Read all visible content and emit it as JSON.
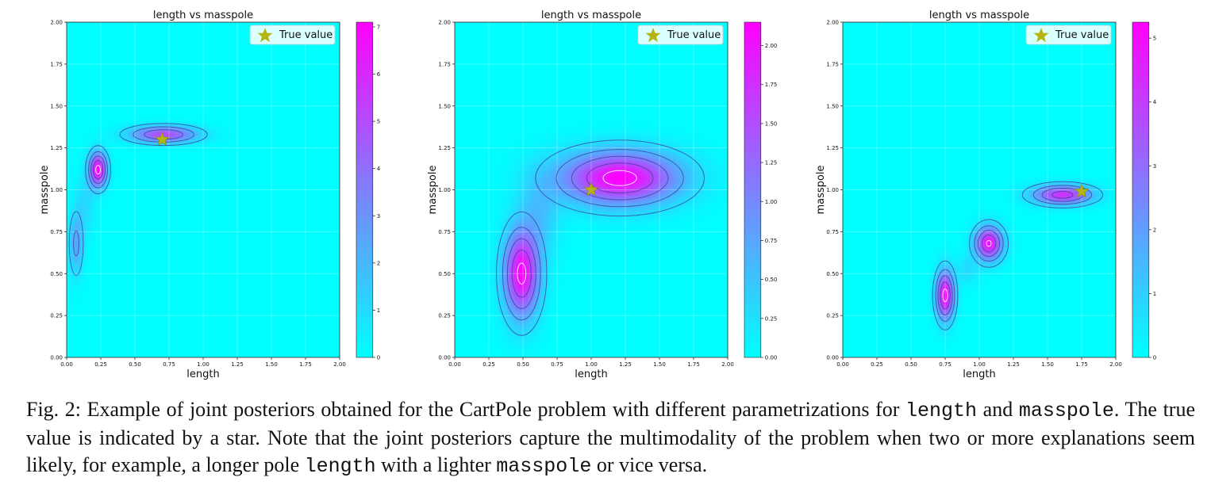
{
  "chart_data": [
    {
      "type": "heatmap",
      "title": "length vs masspole",
      "xlabel": "length",
      "ylabel": "masspole",
      "xlim": [
        0,
        2
      ],
      "ylim": [
        0,
        2
      ],
      "xticks": [
        "0.00",
        "0.25",
        "0.50",
        "0.75",
        "1.00",
        "1.25",
        "1.50",
        "1.75",
        "2.00"
      ],
      "yticks": [
        "0.00",
        "0.25",
        "0.50",
        "0.75",
        "1.00",
        "1.25",
        "1.50",
        "1.75",
        "2.00"
      ],
      "legend": {
        "label": "True value",
        "position": "top-right"
      },
      "true_value": [
        0.7,
        1.3
      ],
      "modes": [
        {
          "x": 0.71,
          "y": 1.33,
          "sx": 0.17,
          "sy": 0.035,
          "amp": 5.0
        },
        {
          "x": 0.23,
          "y": 1.12,
          "sx": 0.045,
          "sy": 0.07,
          "amp": 7.0
        },
        {
          "x": 0.07,
          "y": 0.68,
          "sx": 0.035,
          "sy": 0.13,
          "amp": 2.5
        },
        {
          "x": 0.14,
          "y": 0.92,
          "sx": 0.05,
          "sy": 0.14,
          "amp": 1.0
        }
      ],
      "colorbar": {
        "min": 0,
        "max": 7.1,
        "ticks": [
          "0",
          "1",
          "2",
          "3",
          "4",
          "5",
          "6",
          "7"
        ],
        "values": [
          0,
          1,
          2,
          3,
          4,
          5,
          6,
          7
        ]
      }
    },
    {
      "type": "heatmap",
      "title": "length vs masspole",
      "xlabel": "length",
      "ylabel": "masspole",
      "xlim": [
        0,
        2
      ],
      "ylim": [
        0,
        2
      ],
      "xticks": [
        "0.00",
        "0.25",
        "0.50",
        "0.75",
        "1.00",
        "1.25",
        "1.50",
        "1.75",
        "2.00"
      ],
      "yticks": [
        "0.00",
        "0.25",
        "0.50",
        "0.75",
        "1.00",
        "1.25",
        "1.50",
        "1.75",
        "2.00"
      ],
      "legend": {
        "label": "True value",
        "position": "top-right"
      },
      "true_value": [
        1.0,
        1.0
      ],
      "modes": [
        {
          "x": 1.21,
          "y": 1.07,
          "sx": 0.3,
          "sy": 0.11,
          "amp": 2.15
        },
        {
          "x": 0.49,
          "y": 0.5,
          "sx": 0.09,
          "sy": 0.18,
          "amp": 2.1
        },
        {
          "x": 0.62,
          "y": 0.85,
          "sx": 0.1,
          "sy": 0.17,
          "amp": 0.45
        }
      ],
      "colorbar": {
        "min": 0,
        "max": 2.15,
        "ticks": [
          "0.00",
          "0.25",
          "0.50",
          "0.75",
          "1.00",
          "1.25",
          "1.50",
          "1.75",
          "2.00"
        ],
        "values": [
          0,
          0.25,
          0.5,
          0.75,
          1,
          1.25,
          1.5,
          1.75,
          2
        ]
      }
    },
    {
      "type": "heatmap",
      "title": "length vs masspole",
      "xlabel": "length",
      "ylabel": "masspole",
      "xlim": [
        0,
        2
      ],
      "ylim": [
        0,
        2
      ],
      "xticks": [
        "0.00",
        "0.25",
        "0.50",
        "0.75",
        "1.00",
        "1.25",
        "1.50",
        "1.75",
        "2.00"
      ],
      "yticks": [
        "0.00",
        "0.25",
        "0.50",
        "0.75",
        "1.00",
        "1.25",
        "1.50",
        "1.75",
        "2.00"
      ],
      "legend": {
        "label": "True value",
        "position": "top-right"
      },
      "true_value": [
        1.75,
        0.99
      ],
      "modes": [
        {
          "x": 1.61,
          "y": 0.97,
          "sx": 0.15,
          "sy": 0.04,
          "amp": 4.3
        },
        {
          "x": 1.07,
          "y": 0.68,
          "sx": 0.07,
          "sy": 0.07,
          "amp": 4.9
        },
        {
          "x": 0.75,
          "y": 0.37,
          "sx": 0.045,
          "sy": 0.1,
          "amp": 5.2
        },
        {
          "x": 0.91,
          "y": 0.52,
          "sx": 0.06,
          "sy": 0.06,
          "amp": 0.7
        }
      ],
      "colorbar": {
        "min": 0,
        "max": 5.25,
        "ticks": [
          "0",
          "1",
          "2",
          "3",
          "4",
          "5"
        ],
        "values": [
          0,
          1,
          2,
          3,
          4,
          5
        ]
      }
    }
  ],
  "caption": {
    "part1": "Fig. 2: Example of joint posteriors obtained for the CartPole problem with different parametrizations for ",
    "code1": "length",
    "part2": " and ",
    "code2": "masspole",
    "part3": ". The true value is indicated by a star. Note that the joint posteriors capture the multimodality of the problem when two or more explanations seem likely, for example, a longer pole ",
    "code3": "length",
    "part4": " with a lighter ",
    "code4": "masspole",
    "part5": " or vice versa."
  }
}
